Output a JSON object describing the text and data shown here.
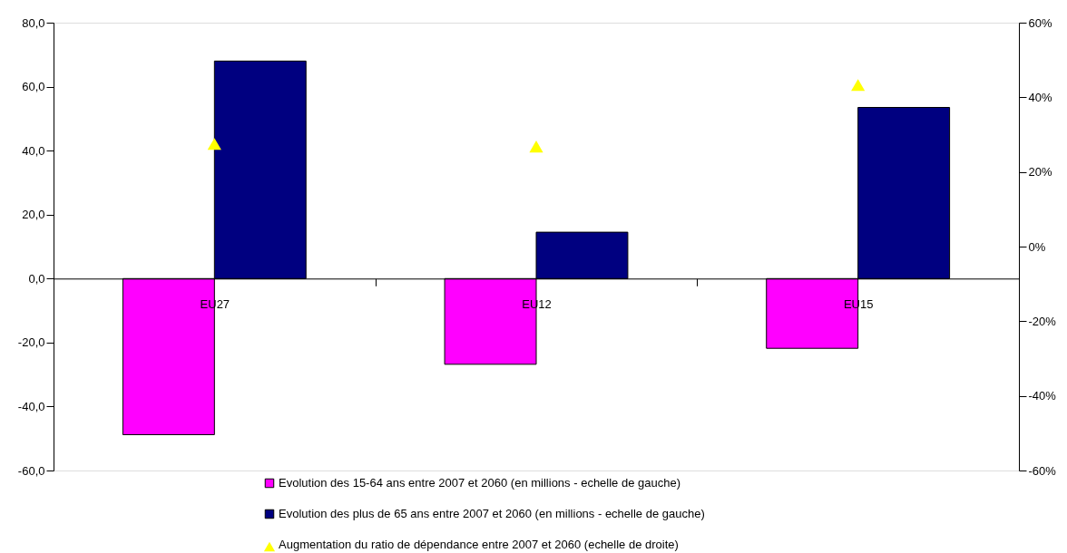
{
  "chart_data": {
    "type": "bar",
    "categories": [
      "EU27",
      "EU12",
      "EU15"
    ],
    "series": [
      {
        "name": "Evolution des 15-64 ans entre 2007 et 2060 (en millions - echelle de gauche)",
        "color": "#ff00ff",
        "values": [
          -48.8,
          -26.8,
          -21.8
        ]
      },
      {
        "name": "Evolution des plus de 65 ans entre 2007 et 2060 (en millions - echelle de gauche)",
        "color": "#000080",
        "values": [
          68.0,
          14.5,
          53.5
        ]
      },
      {
        "name": "Augmentation du ratio de dépendance entre 2007 et 2060 (echelle de droite)",
        "type": "scatter",
        "axis": "y2",
        "marker": "triangle",
        "color": "#ffff00",
        "values": [
          27.5,
          26.8,
          43.3
        ]
      }
    ],
    "ylim": [
      -60,
      80
    ],
    "yticks": [
      {
        "value": 80,
        "label": "80,0"
      },
      {
        "value": 60,
        "label": "60,0"
      },
      {
        "value": 40,
        "label": "40,0"
      },
      {
        "value": 20,
        "label": "20,0"
      },
      {
        "value": 0,
        "label": "0,0"
      },
      {
        "value": -20,
        "label": "-20,0"
      },
      {
        "value": -40,
        "label": "-40,0"
      },
      {
        "value": -60,
        "label": "-60,0"
      }
    ],
    "y2lim": [
      -60,
      60
    ],
    "y2ticks": [
      {
        "value": 60,
        "label": "60%"
      },
      {
        "value": 40,
        "label": "40%"
      },
      {
        "value": 20,
        "label": "20%"
      },
      {
        "value": 0,
        "label": "0%"
      },
      {
        "value": -20,
        "label": "-20%"
      },
      {
        "value": -40,
        "label": "-40%"
      },
      {
        "value": -60,
        "label": "-60%"
      }
    ],
    "legend": "bottom",
    "grid": false
  }
}
